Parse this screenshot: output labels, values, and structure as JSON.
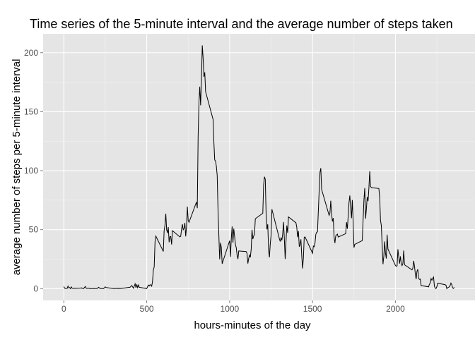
{
  "colors": {
    "panel_background": "#e5e5e5",
    "grid_major": "#ffffff",
    "grid_minor": "#f2f2f2",
    "line": "#000000",
    "tick_text": "#4d4d4d"
  },
  "chart_data": {
    "type": "line",
    "title": "Time series of the 5-minute interval and the average number of steps taken",
    "xlabel": "hours-minutes of the day",
    "ylabel": "average number of steps per 5-minute interval",
    "xlim": [
      -125,
      2480
    ],
    "ylim": [
      -10,
      216
    ],
    "x_ticks": [
      0,
      500,
      1000,
      1500,
      2000
    ],
    "y_ticks": [
      0,
      50,
      100,
      150,
      200
    ],
    "x_tick_labels": [
      "0",
      "500",
      "1000",
      "1500",
      "2000"
    ],
    "y_tick_labels": [
      "0",
      "50",
      "100",
      "150",
      "200"
    ],
    "grid": true,
    "legend": "none",
    "series": [
      {
        "points": [
          [
            0,
            1.7
          ],
          [
            5,
            0.3
          ],
          [
            10,
            0.1
          ],
          [
            15,
            0.2
          ],
          [
            20,
            0.1
          ],
          [
            25,
            2.1
          ],
          [
            30,
            0.5
          ],
          [
            35,
            0.9
          ],
          [
            40,
            0
          ],
          [
            45,
            1.5
          ],
          [
            50,
            0.3
          ],
          [
            55,
            0.2
          ],
          [
            100,
            0.3
          ],
          [
            105,
            0.7
          ],
          [
            110,
            0.2
          ],
          [
            115,
            0.3
          ],
          [
            120,
            0
          ],
          [
            125,
            1.1
          ],
          [
            130,
            1.8
          ],
          [
            135,
            0.2
          ],
          [
            140,
            0.2
          ],
          [
            145,
            0.4
          ],
          [
            150,
            0.3
          ],
          [
            155,
            0
          ],
          [
            200,
            0
          ],
          [
            210,
            1.1
          ],
          [
            220,
            0
          ],
          [
            230,
            0
          ],
          [
            240,
            0
          ],
          [
            250,
            1.5
          ],
          [
            255,
            0.9
          ],
          [
            300,
            0
          ],
          [
            330,
            0.2
          ],
          [
            345,
            0.1
          ],
          [
            400,
            1.2
          ],
          [
            410,
            2.6
          ],
          [
            420,
            0.3
          ],
          [
            430,
            4.1
          ],
          [
            435,
            0.7
          ],
          [
            440,
            3.5
          ],
          [
            445,
            0.8
          ],
          [
            450,
            3.1
          ],
          [
            455,
            1.1
          ],
          [
            500,
            0
          ],
          [
            505,
            1.6
          ],
          [
            510,
            3.0
          ],
          [
            515,
            2.2
          ],
          [
            520,
            3.3
          ],
          [
            525,
            3.0
          ],
          [
            530,
            2.1
          ],
          [
            535,
            6.1
          ],
          [
            540,
            16.0
          ],
          [
            545,
            18.3
          ],
          [
            550,
            39.5
          ],
          [
            555,
            44.5
          ],
          [
            600,
            31.5
          ],
          [
            605,
            49.3
          ],
          [
            610,
            53.8
          ],
          [
            615,
            63.5
          ],
          [
            620,
            50.0
          ],
          [
            625,
            47.1
          ],
          [
            630,
            52.2
          ],
          [
            635,
            39.3
          ],
          [
            640,
            44.0
          ],
          [
            645,
            44.2
          ],
          [
            650,
            37.4
          ],
          [
            655,
            49.1
          ],
          [
            700,
            43.8
          ],
          [
            705,
            44.4
          ],
          [
            710,
            50.5
          ],
          [
            715,
            54.5
          ],
          [
            720,
            49.9
          ],
          [
            725,
            51.0
          ],
          [
            730,
            55.7
          ],
          [
            735,
            44.3
          ],
          [
            740,
            52.3
          ],
          [
            745,
            69.5
          ],
          [
            750,
            57.8
          ],
          [
            755,
            56.2
          ],
          [
            800,
            73.4
          ],
          [
            805,
            68.2
          ],
          [
            810,
            129.4
          ],
          [
            815,
            157.5
          ],
          [
            820,
            171.2
          ],
          [
            825,
            155.4
          ],
          [
            830,
            177.3
          ],
          [
            835,
            206.2
          ],
          [
            840,
            195.9
          ],
          [
            845,
            179.6
          ],
          [
            850,
            183.4
          ],
          [
            855,
            167.0
          ],
          [
            900,
            143.5
          ],
          [
            905,
            124.0
          ],
          [
            910,
            109.1
          ],
          [
            915,
            108.1
          ],
          [
            920,
            103.7
          ],
          [
            925,
            95.9
          ],
          [
            930,
            66.2
          ],
          [
            935,
            45.2
          ],
          [
            940,
            24.8
          ],
          [
            945,
            38.8
          ],
          [
            950,
            34.9
          ],
          [
            955,
            21.1
          ],
          [
            1000,
            40.6
          ],
          [
            1005,
            26.9
          ],
          [
            1010,
            42.4
          ],
          [
            1015,
            52.7
          ],
          [
            1020,
            38.9
          ],
          [
            1025,
            50.8
          ],
          [
            1030,
            44.3
          ],
          [
            1035,
            37.4
          ],
          [
            1040,
            34.7
          ],
          [
            1045,
            28.3
          ],
          [
            1050,
            25.1
          ],
          [
            1055,
            31.9
          ],
          [
            1100,
            31.4
          ],
          [
            1105,
            29.7
          ],
          [
            1110,
            21.3
          ],
          [
            1115,
            25.5
          ],
          [
            1120,
            28.4
          ],
          [
            1125,
            26.5
          ],
          [
            1130,
            33.4
          ],
          [
            1135,
            49.9
          ],
          [
            1140,
            42.0
          ],
          [
            1145,
            44.6
          ],
          [
            1150,
            46.0
          ],
          [
            1155,
            59.2
          ],
          [
            1200,
            63.9
          ],
          [
            1205,
            87.7
          ],
          [
            1210,
            94.8
          ],
          [
            1215,
            92.8
          ],
          [
            1220,
            63.4
          ],
          [
            1225,
            50.2
          ],
          [
            1230,
            54.5
          ],
          [
            1235,
            32.4
          ],
          [
            1240,
            26.5
          ],
          [
            1245,
            37.7
          ],
          [
            1250,
            45.1
          ],
          [
            1255,
            67.3
          ],
          [
            1300,
            42.3
          ],
          [
            1305,
            39.9
          ],
          [
            1310,
            43.3
          ],
          [
            1315,
            40.9
          ],
          [
            1320,
            46.2
          ],
          [
            1325,
            56.4
          ],
          [
            1330,
            42.8
          ],
          [
            1335,
            25.1
          ],
          [
            1340,
            39.9
          ],
          [
            1345,
            53.5
          ],
          [
            1350,
            47.3
          ],
          [
            1355,
            60.8
          ],
          [
            1400,
            55.8
          ],
          [
            1405,
            51.9
          ],
          [
            1410,
            43.6
          ],
          [
            1415,
            48.7
          ],
          [
            1420,
            35.5
          ],
          [
            1425,
            37.5
          ],
          [
            1430,
            41.8
          ],
          [
            1435,
            27.5
          ],
          [
            1440,
            17.1
          ],
          [
            1445,
            26.1
          ],
          [
            1450,
            43.6
          ],
          [
            1455,
            43.8
          ],
          [
            1500,
            30.0
          ],
          [
            1505,
            36.1
          ],
          [
            1510,
            35.5
          ],
          [
            1515,
            38.8
          ],
          [
            1520,
            46.0
          ],
          [
            1525,
            47.8
          ],
          [
            1530,
            48.1
          ],
          [
            1535,
            65.3
          ],
          [
            1540,
            82.9
          ],
          [
            1545,
            98.7
          ],
          [
            1550,
            102.1
          ],
          [
            1555,
            84.0
          ],
          [
            1600,
            62.1
          ],
          [
            1605,
            64.1
          ],
          [
            1610,
            74.5
          ],
          [
            1615,
            63.2
          ],
          [
            1620,
            56.9
          ],
          [
            1625,
            59.8
          ],
          [
            1630,
            43.9
          ],
          [
            1635,
            38.6
          ],
          [
            1640,
            44.7
          ],
          [
            1645,
            45.5
          ],
          [
            1650,
            46.2
          ],
          [
            1655,
            43.7
          ],
          [
            1700,
            46.6
          ],
          [
            1705,
            56.3
          ],
          [
            1710,
            50.7
          ],
          [
            1715,
            61.2
          ],
          [
            1720,
            72.7
          ],
          [
            1725,
            78.9
          ],
          [
            1730,
            68.9
          ],
          [
            1735,
            59.7
          ],
          [
            1740,
            75.1
          ],
          [
            1745,
            56.5
          ],
          [
            1750,
            34.8
          ],
          [
            1755,
            37.5
          ],
          [
            1800,
            40.7
          ],
          [
            1805,
            58.0
          ],
          [
            1810,
            74.7
          ],
          [
            1815,
            85.3
          ],
          [
            1820,
            59.3
          ],
          [
            1825,
            67.8
          ],
          [
            1830,
            77.7
          ],
          [
            1835,
            74.2
          ],
          [
            1840,
            85.3
          ],
          [
            1845,
            99.5
          ],
          [
            1850,
            86.6
          ],
          [
            1855,
            85.6
          ],
          [
            1900,
            84.9
          ],
          [
            1905,
            77.8
          ],
          [
            1910,
            58.0
          ],
          [
            1915,
            53.4
          ],
          [
            1920,
            36.3
          ],
          [
            1925,
            20.7
          ],
          [
            1930,
            27.4
          ],
          [
            1935,
            40.0
          ],
          [
            1940,
            30.2
          ],
          [
            1945,
            25.5
          ],
          [
            1950,
            45.7
          ],
          [
            1955,
            33.5
          ],
          [
            2000,
            19.6
          ],
          [
            2005,
            19.0
          ],
          [
            2010,
            19.3
          ],
          [
            2015,
            33.3
          ],
          [
            2020,
            26.8
          ],
          [
            2025,
            21.2
          ],
          [
            2030,
            27.3
          ],
          [
            2035,
            21.3
          ],
          [
            2040,
            19.5
          ],
          [
            2045,
            21.3
          ],
          [
            2050,
            32.3
          ],
          [
            2055,
            20.2
          ],
          [
            2100,
            15.9
          ],
          [
            2105,
            17.2
          ],
          [
            2110,
            23.5
          ],
          [
            2115,
            19.2
          ],
          [
            2120,
            12.5
          ],
          [
            2125,
            8.0
          ],
          [
            2130,
            14.7
          ],
          [
            2135,
            16.3
          ],
          [
            2140,
            8.7
          ],
          [
            2145,
            7.8
          ],
          [
            2150,
            8.1
          ],
          [
            2155,
            2.6
          ],
          [
            2200,
            1.5
          ],
          [
            2205,
            3.7
          ],
          [
            2210,
            4.8
          ],
          [
            2215,
            8.5
          ],
          [
            2220,
            7.1
          ],
          [
            2225,
            8.7
          ],
          [
            2230,
            9.8
          ],
          [
            2235,
            2.2
          ],
          [
            2240,
            0.3
          ],
          [
            2245,
            0.1
          ],
          [
            2250,
            1.6
          ],
          [
            2255,
            4.6
          ],
          [
            2300,
            3.3
          ],
          [
            2305,
            2.8
          ],
          [
            2310,
            0
          ],
          [
            2315,
            0.8
          ],
          [
            2320,
            1.0
          ],
          [
            2325,
            1.6
          ],
          [
            2330,
            2.6
          ],
          [
            2335,
            4.7
          ],
          [
            2340,
            3.3
          ],
          [
            2345,
            0.6
          ],
          [
            2350,
            0.2
          ],
          [
            2355,
            1.1
          ]
        ]
      }
    ]
  }
}
